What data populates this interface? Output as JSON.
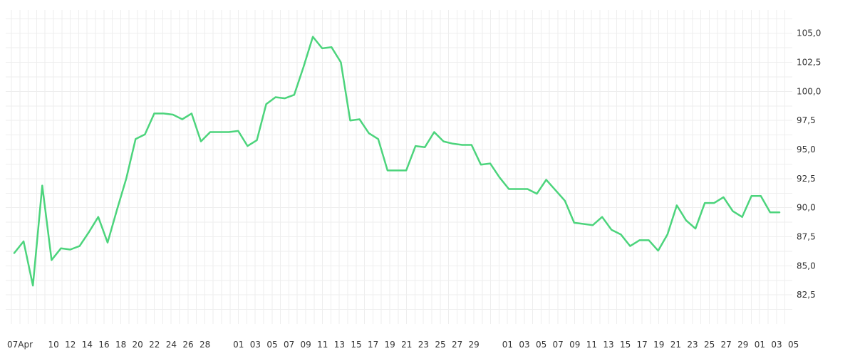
{
  "chart_data": {
    "type": "line",
    "title": "",
    "xlabel": "",
    "ylabel": "",
    "ylim": [
      80,
      107
    ],
    "y_ticks": [
      "82,5",
      "85,0",
      "87,5",
      "90,0",
      "92,5",
      "95,0",
      "97,5",
      "100,0",
      "102,5",
      "105,0"
    ],
    "x_ticks": [
      "07Apr",
      "10",
      "12",
      "14",
      "16",
      "18",
      "20",
      "22",
      "24",
      "26",
      "28",
      "01",
      "03",
      "05",
      "07",
      "09",
      "11",
      "13",
      "15",
      "17",
      "19",
      "21",
      "23",
      "25",
      "27",
      "29",
      "01",
      "03",
      "05",
      "07",
      "09",
      "11",
      "13",
      "15",
      "17",
      "19",
      "21",
      "23",
      "25",
      "27",
      "29",
      "01",
      "03",
      "05"
    ],
    "grid": true,
    "series": [
      {
        "color": "#4cd47c",
        "values": [
          86.1,
          87.1,
          83.3,
          91.9,
          85.5,
          86.5,
          86.4,
          86.7,
          87.9,
          89.2,
          87.0,
          89.8,
          92.5,
          95.9,
          96.3,
          98.1,
          98.1,
          98.0,
          97.6,
          98.1,
          95.7,
          96.5,
          96.5,
          96.5,
          96.6,
          95.3,
          95.8,
          98.9,
          99.5,
          99.4,
          99.7,
          102.1,
          104.7,
          103.7,
          103.8,
          102.5,
          97.5,
          97.6,
          96.4,
          95.9,
          93.2,
          93.2,
          93.2,
          95.3,
          95.2,
          96.5,
          95.7,
          95.5,
          95.4,
          95.4,
          93.7,
          93.8,
          92.6,
          91.6,
          91.6,
          91.6,
          91.2,
          92.4,
          91.5,
          90.6,
          88.7,
          88.6,
          88.5,
          89.2,
          88.1,
          87.7,
          86.7,
          87.2,
          87.2,
          86.3,
          87.7,
          90.2,
          88.9,
          88.2,
          90.4,
          90.4,
          90.9,
          89.7,
          89.2,
          91.0,
          91.0,
          89.6,
          89.6
        ]
      }
    ]
  }
}
